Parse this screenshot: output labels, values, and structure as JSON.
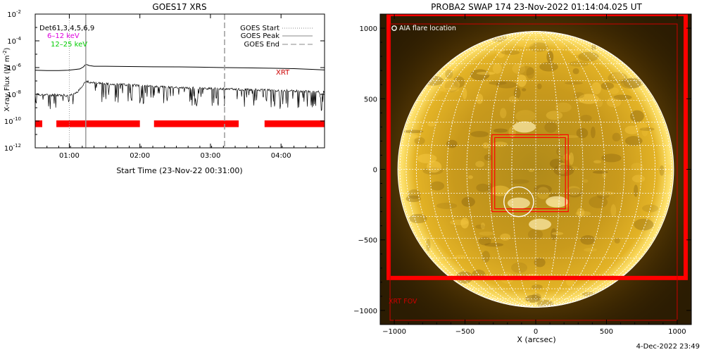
{
  "chart_data": [
    {
      "type": "line",
      "title": "GOES17 XRS",
      "xlabel": "Start Time (23-Nov-22 00:31:00)",
      "ylabel": "X-ray Flux (W m",
      "ylabel_sup": "-2",
      "ylabel_close": ")",
      "y_scale": "log",
      "x_unit": "minutes after start time",
      "xlim": [
        0,
        246
      ],
      "ylim_exp": [
        -12,
        -2
      ],
      "x_ticks": [
        {
          "value": 29,
          "label": "01:00"
        },
        {
          "value": 89,
          "label": "02:00"
        },
        {
          "value": 149,
          "label": "03:00"
        },
        {
          "value": 209,
          "label": "04:00"
        }
      ],
      "y_ticks": [
        {
          "exp": -2,
          "label": "10",
          "sup": "-2"
        },
        {
          "exp": -4,
          "label": "10",
          "sup": "-4"
        },
        {
          "exp": -6,
          "label": "10",
          "sup": "-6"
        },
        {
          "exp": -8,
          "label": "10",
          "sup": "-8"
        },
        {
          "exp": -10,
          "label": "10",
          "sup": "-10"
        },
        {
          "exp": -12,
          "label": "10",
          "sup": "-12"
        }
      ],
      "legend_left": [
        {
          "label": "Det61,3,4,5,6,9",
          "color": "#000000"
        },
        {
          "label": "6–12 keV",
          "color": "#dd00dd"
        },
        {
          "label": "12–25 keV",
          "color": "#00cc00"
        }
      ],
      "legend_right": [
        {
          "label": "GOES Start",
          "style": "dotted",
          "color": "#888888"
        },
        {
          "label": "GOES Peak",
          "style": "solid",
          "color": "#888888"
        },
        {
          "label": "GOES End",
          "style": "dashed",
          "color": "#888888"
        }
      ],
      "xrt_label": "XRT",
      "goes_start": 29,
      "goes_peak": 43,
      "goes_end": 161,
      "series": [
        {
          "color": "#000000",
          "x": [
            0,
            10,
            20,
            28,
            33,
            38,
            41,
            43,
            46,
            50,
            60,
            80,
            100,
            120,
            140,
            160,
            180,
            200,
            220,
            235,
            246
          ],
          "y_exp": [
            -6.2,
            -6.22,
            -6.22,
            -6.2,
            -6.15,
            -6.1,
            -5.95,
            -5.75,
            -5.85,
            -5.9,
            -5.9,
            -5.92,
            -5.94,
            -5.95,
            -5.97,
            -6.0,
            -6.02,
            -6.05,
            -6.08,
            -6.13,
            -6.18
          ]
        },
        {
          "color": "#000000",
          "noisy": true,
          "x": [
            0,
            10,
            20,
            28,
            33,
            36,
            40,
            43,
            47,
            50,
            60,
            80,
            100,
            120,
            140,
            160,
            180,
            200,
            220,
            235,
            246
          ],
          "y_exp": [
            -8.0,
            -8.05,
            -8.05,
            -8.1,
            -8.0,
            -7.8,
            -7.35,
            -7.05,
            -7.1,
            -7.15,
            -7.2,
            -7.3,
            -7.4,
            -7.5,
            -7.55,
            -7.6,
            -7.65,
            -7.7,
            -7.75,
            -7.8,
            -7.85
          ]
        }
      ],
      "xrt_coverage_intervals": [
        [
          0,
          6
        ],
        [
          18,
          89
        ],
        [
          101,
          173
        ],
        [
          195,
          246
        ]
      ]
    },
    {
      "type": "image",
      "title": "PROBA2 SWAP 174 23-Nov-2022 01:14:04.025 UT",
      "xlabel": "X (arcsec)",
      "xlim": [
        -1100,
        1100
      ],
      "ylim": [
        -1100,
        1100
      ],
      "x_ticks": [
        -1000,
        -500,
        0,
        500,
        1000
      ],
      "x_tick_labels": [
        "−1000",
        "−500",
        "0",
        "500",
        "1000"
      ],
      "y_ticks": [
        -1000,
        -500,
        0,
        500,
        1000
      ],
      "y_tick_labels": [
        "−1000",
        "−500",
        "0",
        "500",
        "1000"
      ],
      "aia_legend": "AIA flare location",
      "xrt_fov_label": "XRT FOV",
      "solar_radius_arcsec": 975,
      "aia_circle": {
        "x": -120,
        "y": -230,
        "r": 105
      },
      "xrt_box": {
        "x0": -310,
        "x1": 230,
        "y0": -300,
        "y1": 245
      },
      "xrt_fov": {
        "x0": -1030,
        "x1": 1000,
        "y0": -1070,
        "y1": 1030
      },
      "thick_frame": {
        "x0": -1040,
        "x1": 1060,
        "y0": -770,
        "y1": 1100
      }
    }
  ],
  "footer": {
    "date": "4-Dec-2022 23:49"
  }
}
